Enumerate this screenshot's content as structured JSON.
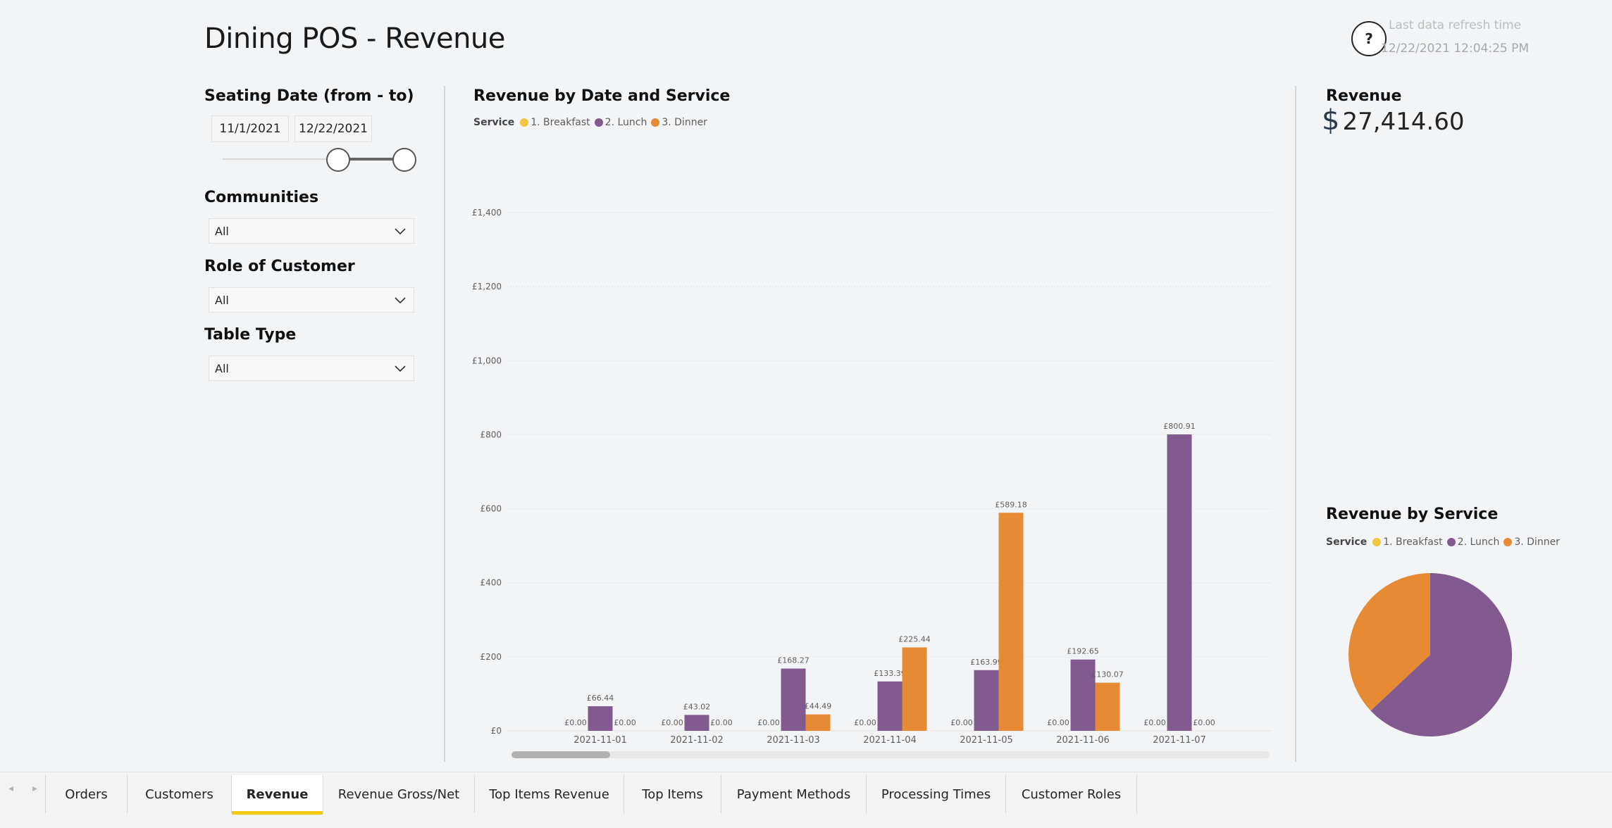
{
  "report": {
    "title": "Dining POS - Revenue",
    "help_symbol": "?",
    "refresh_label": "Last data refresh time",
    "refresh_value": "12/22/2021 12:04:25 PM"
  },
  "slicers": {
    "seating_date": {
      "title": "Seating Date (from - to)",
      "from": "11/1/2021",
      "to": "12/22/2021"
    },
    "communities": {
      "title": "Communities",
      "value": "All"
    },
    "role_of_customer": {
      "title": "Role of Customer",
      "value": "All"
    },
    "table_type": {
      "title": "Table Type",
      "value": "All"
    }
  },
  "legend": {
    "title": "Service",
    "items": [
      "1. Breakfast",
      "2. Lunch",
      "3. Dinner"
    ]
  },
  "colors": {
    "breakfast": "#f2c440",
    "lunch": "#825a8f",
    "dinner": "#e68a33",
    "gridline": "#e4e4e4",
    "axis_text": "#605e5c"
  },
  "bar_chart": {
    "title": "Revenue by Date and Service"
  },
  "kpi": {
    "title": "Revenue",
    "currency": "$",
    "value": "27,414.60"
  },
  "pie_chart": {
    "title": "Revenue by Service"
  },
  "chart_data": [
    {
      "type": "bar",
      "title": "Revenue by Date and Service",
      "xlabel": "",
      "ylabel": "",
      "ylim": [
        0,
        1400
      ],
      "yticks": [
        0,
        200,
        400,
        600,
        800,
        1000,
        1200,
        1400
      ],
      "ytick_labels": [
        "£0",
        "£200",
        "£400",
        "£600",
        "£800",
        "£1,000",
        "£1,200",
        "£1,400"
      ],
      "grid": true,
      "legend": "top-left",
      "categories": [
        "2021-11-01",
        "2021-11-02",
        "2021-11-03",
        "2021-11-04",
        "2021-11-05",
        "2021-11-06",
        "2021-11-07"
      ],
      "series": [
        {
          "name": "1. Breakfast",
          "values": [
            0,
            0,
            0,
            0,
            0,
            0,
            0
          ],
          "labels": [
            "£0.00",
            "£0.00",
            "£0.00",
            "£0.00",
            "£0.00",
            "£0.00",
            "£0.00"
          ]
        },
        {
          "name": "2. Lunch",
          "values": [
            66.44,
            43.02,
            168.27,
            133.39,
            163.99,
            192.65,
            800.91
          ],
          "labels": [
            "£66.44",
            "£43.02",
            "£168.27",
            "£133.39",
            "£163.99",
            "£192.65",
            "£800.91"
          ]
        },
        {
          "name": "3. Dinner",
          "values": [
            0,
            0,
            44.49,
            225.44,
            589.18,
            130.07,
            0
          ],
          "labels": [
            "£0.00",
            "£0.00",
            "£44.49",
            "£225.44",
            "£589.18",
            "£130.07",
            "£0.00"
          ]
        }
      ]
    },
    {
      "type": "pie",
      "title": "Revenue by Service",
      "legend": "top-left",
      "categories": [
        "1. Breakfast",
        "2. Lunch",
        "3. Dinner"
      ],
      "values": [
        0,
        63,
        37
      ]
    }
  ],
  "tabs": [
    {
      "label": "Orders",
      "active": false
    },
    {
      "label": "Customers",
      "active": false
    },
    {
      "label": "Revenue",
      "active": true
    },
    {
      "label": "Revenue Gross/Net",
      "active": false
    },
    {
      "label": "Top Items Revenue",
      "active": false
    },
    {
      "label": "Top Items",
      "active": false
    },
    {
      "label": "Payment Methods",
      "active": false
    },
    {
      "label": "Processing Times",
      "active": false
    },
    {
      "label": "Customer Roles",
      "active": false
    }
  ],
  "tab_nav": {
    "prev": "◂",
    "next": "▸"
  }
}
